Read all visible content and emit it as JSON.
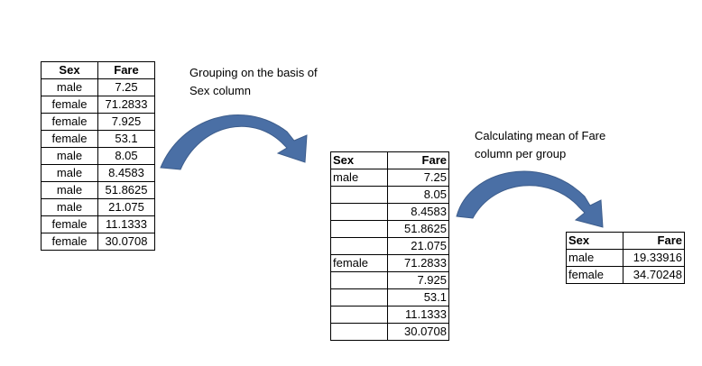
{
  "note_grouping": "Grouping on the basis of\nSex column",
  "note_mean": "Calculating mean of Fare\ncolumn per group",
  "table_original": {
    "headers": [
      "Sex",
      "Fare"
    ],
    "rows": [
      [
        "male",
        "7.25"
      ],
      [
        "female",
        "71.2833"
      ],
      [
        "female",
        "7.925"
      ],
      [
        "female",
        "53.1"
      ],
      [
        "male",
        "8.05"
      ],
      [
        "male",
        "8.4583"
      ],
      [
        "male",
        "51.8625"
      ],
      [
        "male",
        "21.075"
      ],
      [
        "female",
        "11.1333"
      ],
      [
        "female",
        "30.0708"
      ]
    ]
  },
  "table_grouped": {
    "headers": [
      "Sex",
      "Fare"
    ],
    "rows": [
      [
        "male",
        "7.25"
      ],
      [
        "",
        "8.05"
      ],
      [
        "",
        "8.4583"
      ],
      [
        "",
        "51.8625"
      ],
      [
        "",
        "21.075"
      ],
      [
        "female",
        "71.2833"
      ],
      [
        "",
        "7.925"
      ],
      [
        "",
        "53.1"
      ],
      [
        "",
        "11.1333"
      ],
      [
        "",
        "30.0708"
      ]
    ]
  },
  "table_mean": {
    "headers": [
      "Sex",
      "Fare"
    ],
    "rows": [
      [
        "male",
        "19.33916"
      ],
      [
        "female",
        "34.70248"
      ]
    ]
  },
  "colors": {
    "arrow": "#4a6fa5",
    "arrow_edge": "#3d5d8c",
    "border": "#000000"
  }
}
